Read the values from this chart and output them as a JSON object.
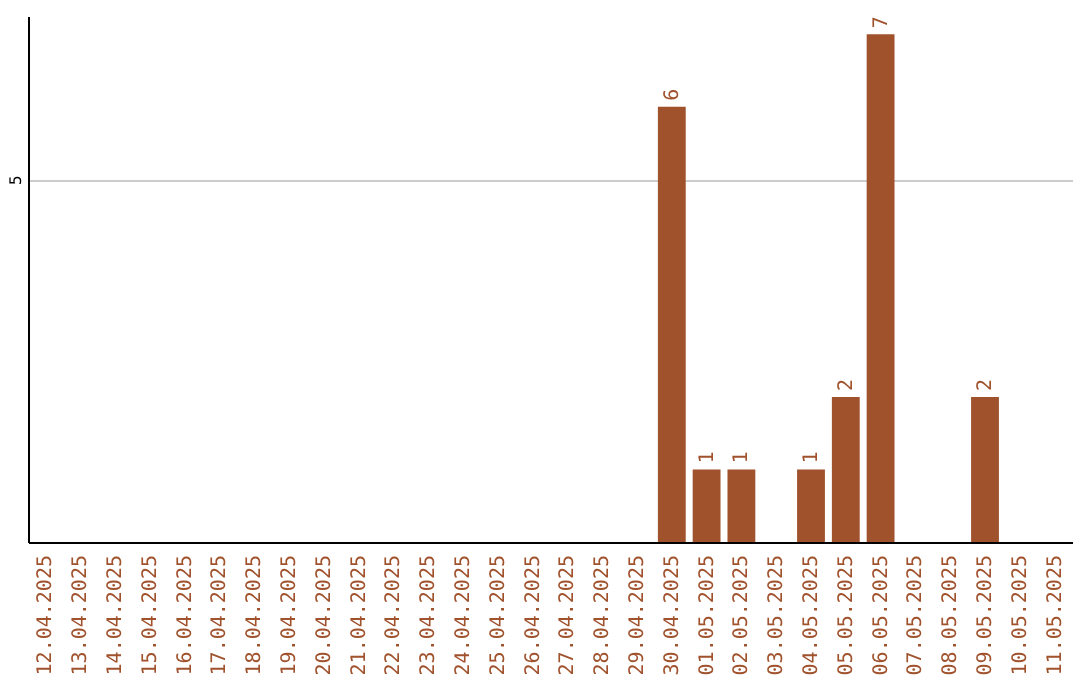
{
  "chart_data": {
    "type": "bar",
    "categories": [
      "12.04.2025",
      "13.04.2025",
      "14.04.2025",
      "15.04.2025",
      "16.04.2025",
      "17.04.2025",
      "18.04.2025",
      "19.04.2025",
      "20.04.2025",
      "21.04.2025",
      "22.04.2025",
      "23.04.2025",
      "24.04.2025",
      "25.04.2025",
      "26.04.2025",
      "27.04.2025",
      "28.04.2025",
      "29.04.2025",
      "30.04.2025",
      "01.05.2025",
      "02.05.2025",
      "03.05.2025",
      "04.05.2025",
      "05.05.2025",
      "06.05.2025",
      "07.05.2025",
      "08.05.2025",
      "09.05.2025",
      "10.05.2025",
      "11.05.2025"
    ],
    "values": [
      null,
      null,
      null,
      null,
      null,
      null,
      null,
      null,
      null,
      null,
      null,
      null,
      null,
      null,
      null,
      null,
      null,
      null,
      6,
      1,
      1,
      null,
      1,
      2,
      7,
      null,
      null,
      2,
      null,
      null
    ],
    "data_labels": true,
    "color": "#a0522d",
    "ylim": [
      0,
      7.25
    ],
    "yticks": [
      5
    ],
    "grid": "y"
  }
}
